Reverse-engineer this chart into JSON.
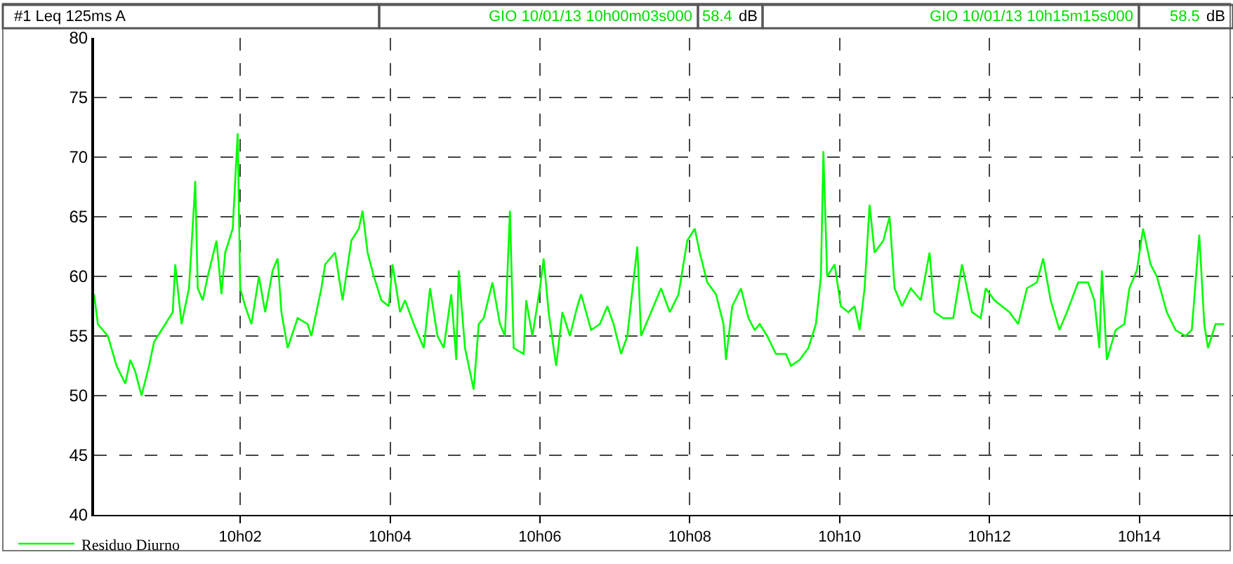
{
  "chart_data": {
    "type": "line",
    "annotations": [
      "#1 Leq 125ms A",
      "GIO 10/01/13 10h00m03s000",
      "58.4",
      "dB",
      "GIO 10/01/13 10h15m15s000",
      "58.5",
      "dB"
    ],
    "x": [
      "--01-10T10:00:03",
      "--01-10T10:00:06",
      "--01-10T10:00:14",
      "--01-10T10:00:21",
      "--01-10T10:00:28",
      "--01-10T10:00:32",
      "--01-10T10:00:36",
      "--01-10T10:00:41",
      "--01-10T10:00:47",
      "--01-10T10:00:51",
      "--01-10T10:00:57",
      "--01-10T10:01:06",
      "--01-10T10:01:08",
      "--01-10T10:01:13",
      "--01-10T10:01:19",
      "--01-10T10:01:23",
      "--01-10T10:01:24",
      "--01-10T10:01:26",
      "--01-10T10:01:30",
      "--01-10T10:01:34",
      "--01-10T10:01:41",
      "--01-10T10:01:45",
      "--01-10T10:01:48",
      "--01-10T10:01:54",
      "--01-10T10:01:58",
      "--01-10T10:02:00",
      "--01-10T10:02:04",
      "--01-10T10:02:09",
      "--01-10T10:02:15",
      "--01-10T10:02:20",
      "--01-10T10:02:26",
      "--01-10T10:02:30",
      "--01-10T10:02:33",
      "--01-10T10:02:38",
      "--01-10T10:02:46",
      "--01-10T10:02:54",
      "--01-10T10:02:57",
      "--01-10T10:03:05",
      "--01-10T10:03:08",
      "--01-10T10:03:16",
      "--01-10T10:03:22",
      "--01-10T10:03:29",
      "--01-10T10:03:35",
      "--01-10T10:03:38",
      "--01-10T10:03:42",
      "--01-10T10:03:47",
      "--01-10T10:03:53",
      "--01-10T10:03:59",
      "--01-10T10:04:02",
      "--01-10T10:04:08",
      "--01-10T10:04:12",
      "--01-10T10:04:19",
      "--01-10T10:04:27",
      "--01-10T10:04:32",
      "--01-10T10:04:38",
      "--01-10T10:04:43",
      "--01-10T10:04:49",
      "--01-10T10:04:53",
      "--01-10T10:04:55",
      "--01-10T10:05:00",
      "--01-10T10:05:06",
      "--01-10T10:05:07",
      "--01-10T10:05:11",
      "--01-10T10:05:15",
      "--01-10T10:05:22",
      "--01-10T10:05:28",
      "--01-10T10:05:32",
      "--01-10T10:05:36",
      "--01-10T10:05:39",
      "--01-10T10:05:47",
      "--01-10T10:05:49",
      "--01-10T10:05:54",
      "--01-10T10:06:00",
      "--01-10T10:06:03",
      "--01-10T10:06:07",
      "--01-10T10:06:13",
      "--01-10T10:06:18",
      "--01-10T10:06:24",
      "--01-10T10:06:30",
      "--01-10T10:06:33",
      "--01-10T10:06:41",
      "--01-10T10:06:48",
      "--01-10T10:06:54",
      "--01-10T10:06:59",
      "--01-10T10:07:05",
      "--01-10T10:07:10",
      "--01-10T10:07:18",
      "--01-10T10:07:21",
      "--01-10T10:07:29",
      "--01-10T10:07:37",
      "--01-10T10:07:44",
      "--01-10T10:07:51",
      "--01-10T10:07:58",
      "--01-10T10:08:04",
      "--01-10T10:08:08",
      "--01-10T10:08:14",
      "--01-10T10:08:21",
      "--01-10T10:08:27",
      "--01-10T10:08:29",
      "--01-10T10:08:34",
      "--01-10T10:08:41",
      "--01-10T10:08:47",
      "--01-10T10:08:52",
      "--01-10T10:08:56",
      "--01-10T10:09:02",
      "--01-10T10:09:09",
      "--01-10T10:09:17",
      "--01-10T10:09:21",
      "--01-10T10:09:28",
      "--01-10T10:09:35",
      "--01-10T10:09:41",
      "--01-10T10:09:45",
      "--01-10T10:09:47",
      "--01-10T10:09:50",
      "--01-10T10:09:56",
      "--01-10T10:10:01",
      "--01-10T10:10:07",
      "--01-10T10:10:12",
      "--01-10T10:10:16",
      "--01-10T10:10:20",
      "--01-10T10:10:24",
      "--01-10T10:10:28",
      "--01-10T10:10:35",
      "--01-10T10:10:40",
      "--01-10T10:10:44",
      "--01-10T10:10:50",
      "--01-10T10:10:57",
      "--01-10T10:11:05",
      "--01-10T10:11:12",
      "--01-10T10:11:16",
      "--01-10T10:11:23",
      "--01-10T10:11:31",
      "--01-10T10:11:38",
      "--01-10T10:11:46",
      "--01-10T10:11:53",
      "--01-10T10:11:57",
      "--01-10T10:12:04",
      "--01-10T10:12:16",
      "--01-10T10:12:23",
      "--01-10T10:12:30",
      "--01-10T10:12:38",
      "--01-10T10:12:43",
      "--01-10T10:12:49",
      "--01-10T10:12:56",
      "--01-10T10:13:02",
      "--01-10T10:13:11",
      "--01-10T10:13:19",
      "--01-10T10:13:24",
      "--01-10T10:13:28",
      "--01-10T10:13:30",
      "--01-10T10:13:34",
      "--01-10T10:13:41",
      "--01-10T10:13:48",
      "--01-10T10:13:52",
      "--01-10T10:13:58",
      "--01-10T10:14:03",
      "--01-10T10:14:09",
      "--01-10T10:14:14",
      "--01-10T10:14:22",
      "--01-10T10:14:29",
      "--01-10T10:14:37",
      "--01-10T10:14:42",
      "--01-10T10:14:48",
      "--01-10T10:14:52",
      "--01-10T10:14:55",
      "--01-10T10:15:01",
      "--01-10T10:15:08"
    ],
    "series": [
      {
        "name": "Residuo Diurno",
        "color": "#00ff00",
        "values": [
          58.5,
          56,
          55,
          52.5,
          51,
          53,
          52,
          50,
          52.5,
          54.5,
          55.5,
          57,
          61,
          56,
          59,
          66,
          68,
          59,
          58,
          60,
          63,
          58.5,
          62,
          64,
          72,
          59,
          57.5,
          56,
          60,
          57,
          60.5,
          61.5,
          57,
          54,
          56.5,
          56,
          55,
          59,
          61,
          62,
          58,
          63,
          64,
          65.5,
          62,
          60,
          58,
          57.5,
          61,
          57,
          58,
          56,
          54,
          59,
          55,
          54,
          58.5,
          53,
          60.5,
          54,
          51,
          50.5,
          56,
          56.5,
          59.5,
          56,
          55,
          65.5,
          54,
          53.5,
          58,
          55,
          59,
          61.5,
          57,
          52.5,
          57,
          55,
          57.5,
          58.5,
          55.5,
          56,
          57.5,
          56,
          53.5,
          55,
          62.5,
          55,
          57,
          59,
          57,
          58.5,
          63,
          64,
          62,
          59.5,
          58.5,
          56,
          53,
          57.5,
          59,
          56.5,
          55.5,
          56,
          55,
          53.5,
          53.5,
          52.5,
          53,
          54,
          56,
          60,
          70.5,
          60,
          61,
          57.5,
          57,
          57.5,
          55.5,
          59,
          66,
          62,
          63,
          65,
          59,
          57.5,
          59,
          58,
          62,
          57,
          56.5,
          56.5,
          61,
          57,
          56.5,
          59,
          58,
          57,
          56,
          59,
          59.5,
          61.5,
          58,
          55.5,
          57,
          59.5,
          59.5,
          58,
          54,
          60.5,
          53,
          55.5,
          56,
          59,
          60.5,
          64,
          61,
          60,
          57,
          55.5,
          55,
          55.5,
          63.5,
          56,
          54,
          56,
          56
        ]
      }
    ],
    "xlim": [
      "--01-10T10:00:03",
      "--01-10T10:15:15"
    ],
    "xticks": [
      {
        "value": "--01-10T10:02",
        "label": "10h02"
      },
      {
        "value": "--01-10T10:04",
        "label": "10h04"
      },
      {
        "value": "--01-10T10:06",
        "label": "10h06"
      },
      {
        "value": "--01-10T10:08",
        "label": "10h08"
      },
      {
        "value": "--01-10T10:10",
        "label": "10h10"
      },
      {
        "value": "--01-10T10:12",
        "label": "10h12"
      },
      {
        "value": "--01-10T10:14",
        "label": "10h14"
      }
    ],
    "ylim": [
      40,
      80
    ],
    "yticks": [
      40,
      45,
      50,
      55,
      60,
      65,
      70,
      75,
      80
    ],
    "grid": true,
    "line_style": "solid",
    "marker": "none",
    "legend": "bottom left"
  }
}
